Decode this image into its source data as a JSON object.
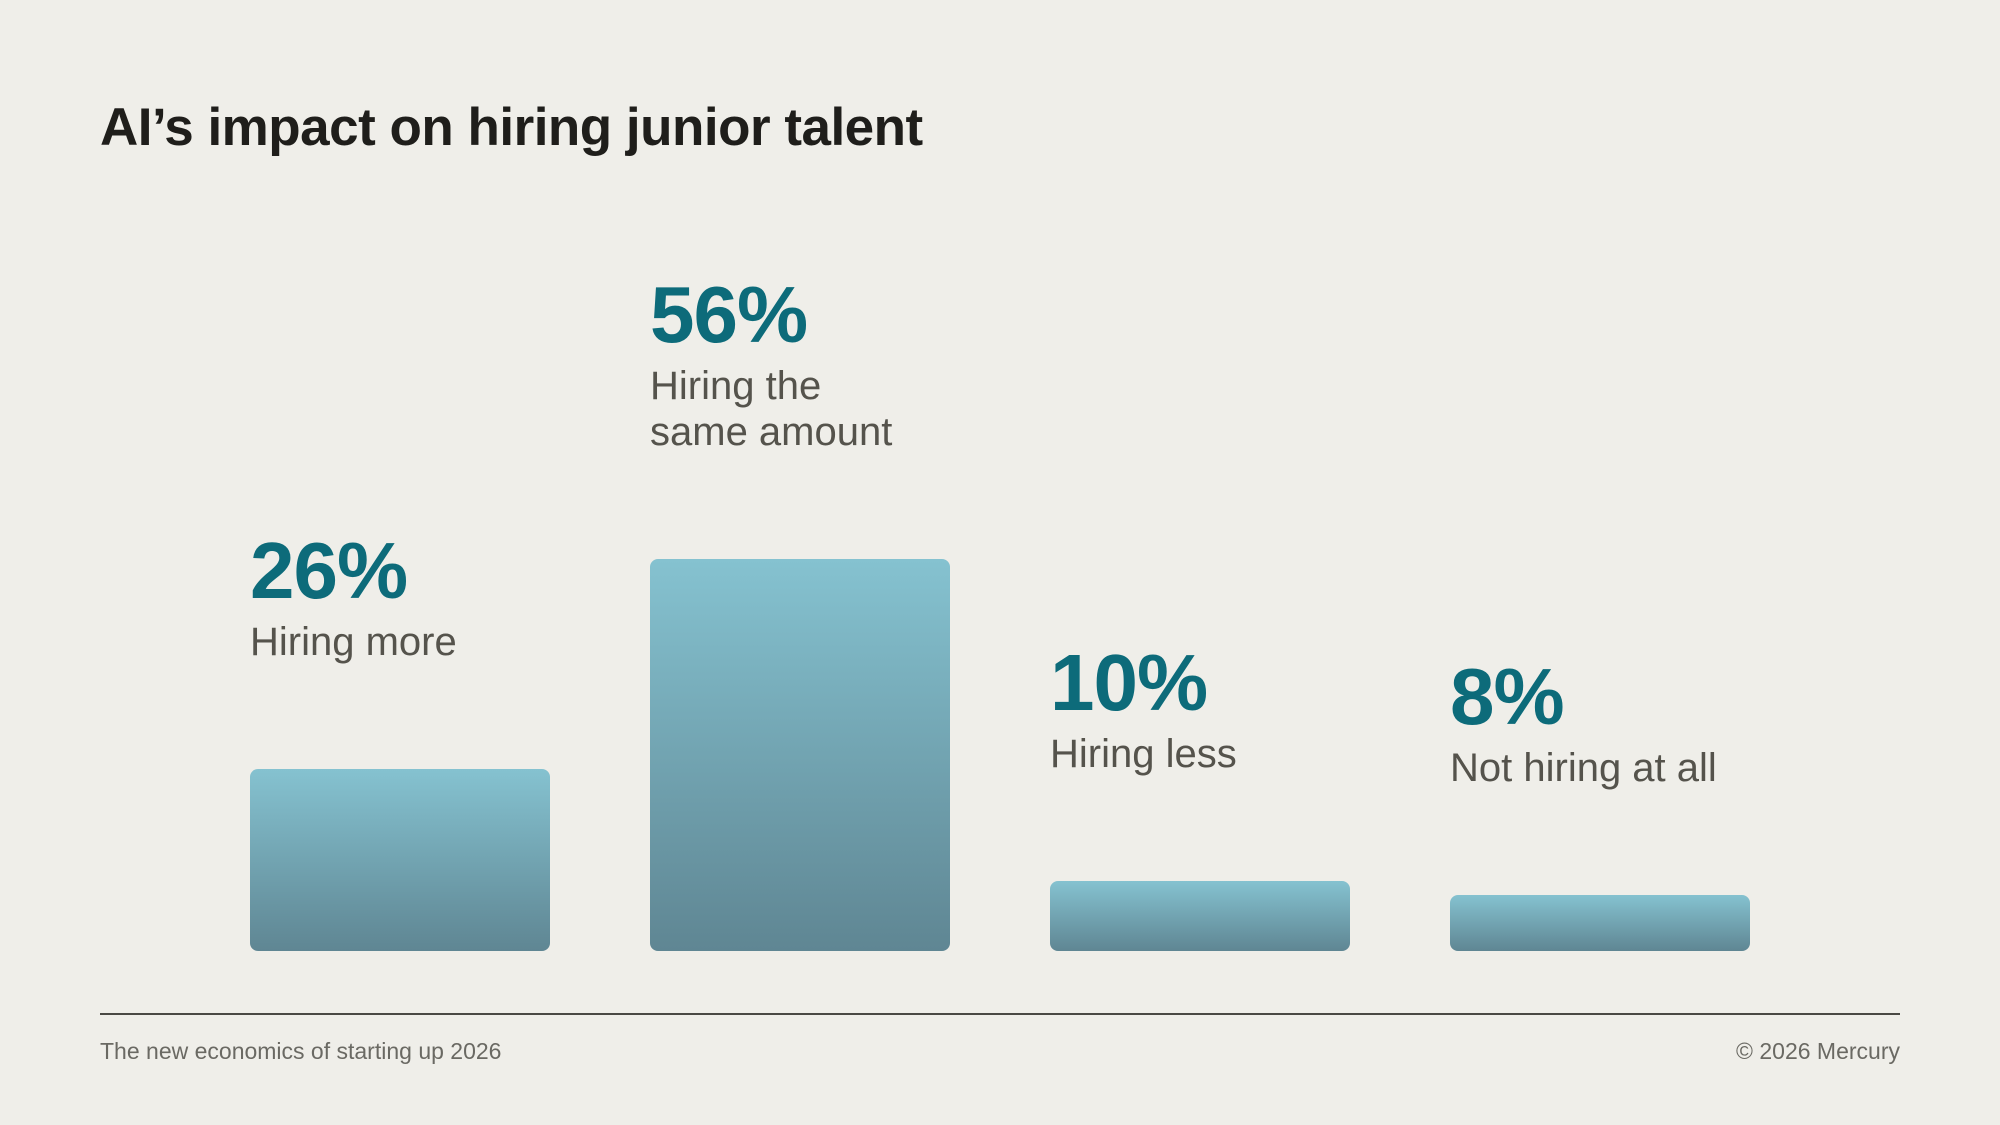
{
  "header": {
    "title": "AI’s impact on hiring junior talent"
  },
  "footer": {
    "left_text": "The new economics of starting up 2026",
    "right_text": "© 2026 Mercury"
  },
  "colors": {
    "value_text": "#0d6b7a",
    "label_text": "#55534c",
    "bar_top": "#85c2d0",
    "bar_bottom": "#5f8693"
  },
  "chart_data": {
    "type": "bar",
    "categories": [
      "Hiring more",
      "Hiring the same amount",
      "Hiring less",
      "Not hiring at all"
    ],
    "label_lines": [
      [
        "Hiring more"
      ],
      [
        "Hiring the",
        "same amount"
      ],
      [
        "Hiring less"
      ],
      [
        "Not hiring at all"
      ]
    ],
    "values": [
      26,
      56,
      10,
      8
    ],
    "value_labels": [
      "26%",
      "56%",
      "10%",
      "8%"
    ],
    "unit": "%",
    "ylim": [
      0,
      56
    ],
    "grid": false,
    "axes_visible": false
  }
}
